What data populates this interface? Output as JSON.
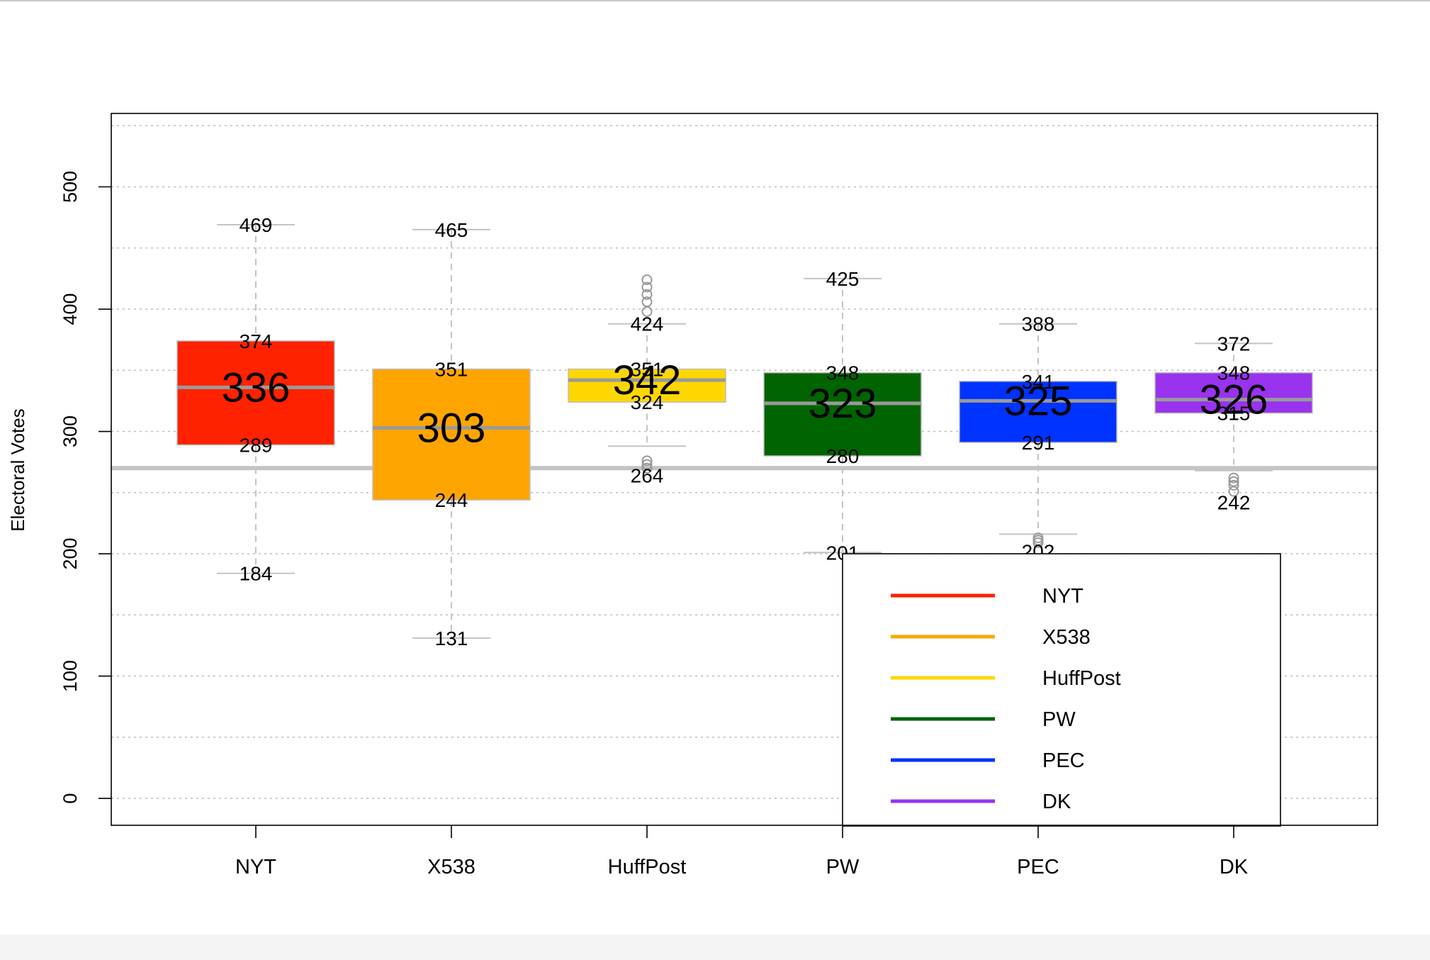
{
  "chart_data": {
    "type": "boxplot",
    "ylabel": "Electoral Votes",
    "ylim": [
      -22,
      560
    ],
    "y_ticks": [
      "0",
      "100",
      "200",
      "300",
      "400",
      "500"
    ],
    "grid": true,
    "reference_line": 270,
    "legend_position": "bottom-right",
    "categories": [
      "NYT",
      "X538",
      "HuffPost",
      "PW",
      "PEC",
      "DK"
    ],
    "series": [
      {
        "name": "NYT",
        "color": "#ff2200",
        "whisker_high": 469,
        "q3": 374,
        "median": 336,
        "q1": 289,
        "whisker_low": 184,
        "outliers": [],
        "labels": {
          "whisker_high": "469",
          "q3": "374",
          "median": "336",
          "q1": "289",
          "whisker_low": "184"
        }
      },
      {
        "name": "X538",
        "color": "#ffa500",
        "whisker_high": 465,
        "q3": 351,
        "median": 303,
        "q1": 244,
        "whisker_low": 131,
        "outliers": [],
        "labels": {
          "whisker_high": "465",
          "q3": "351",
          "median": "303",
          "q1": "244",
          "whisker_low": "131"
        }
      },
      {
        "name": "HuffPost",
        "color": "#ffd700",
        "whisker_high": 388,
        "q3": 351,
        "median": 342,
        "q1": 324,
        "whisker_low": 288,
        "outliers": [
          424,
          418,
          412,
          406,
          398,
          276,
          273,
          270
        ],
        "labels": {
          "whisker_high": "424",
          "q3": "351",
          "median": "342",
          "q1": "324",
          "whisker_low": "264"
        }
      },
      {
        "name": "PW",
        "color": "#006400",
        "whisker_high": 425,
        "q3": 348,
        "median": 323,
        "q1": 280,
        "whisker_low": 201,
        "outliers": [],
        "labels": {
          "whisker_high": "425",
          "q3": "348",
          "median": "323",
          "q1": "280",
          "whisker_low": "201"
        }
      },
      {
        "name": "PEC",
        "color": "#0033ff",
        "whisker_high": 388,
        "q3": 341,
        "median": 325,
        "q1": 291,
        "whisker_low": 216,
        "outliers": [
          213,
          211,
          209
        ],
        "labels": {
          "whisker_high": "388",
          "q3": "341",
          "median": "325",
          "q1": "291",
          "whisker_low": "202"
        }
      },
      {
        "name": "DK",
        "color": "#9933ee",
        "whisker_high": 372,
        "q3": 348,
        "median": 326,
        "q1": 315,
        "whisker_low": 268,
        "outliers": [
          262,
          259,
          256,
          251
        ],
        "labels": {
          "whisker_high": "372",
          "q3": "348",
          "median": "326",
          "q1": "315",
          "whisker_low": "242"
        }
      }
    ]
  }
}
